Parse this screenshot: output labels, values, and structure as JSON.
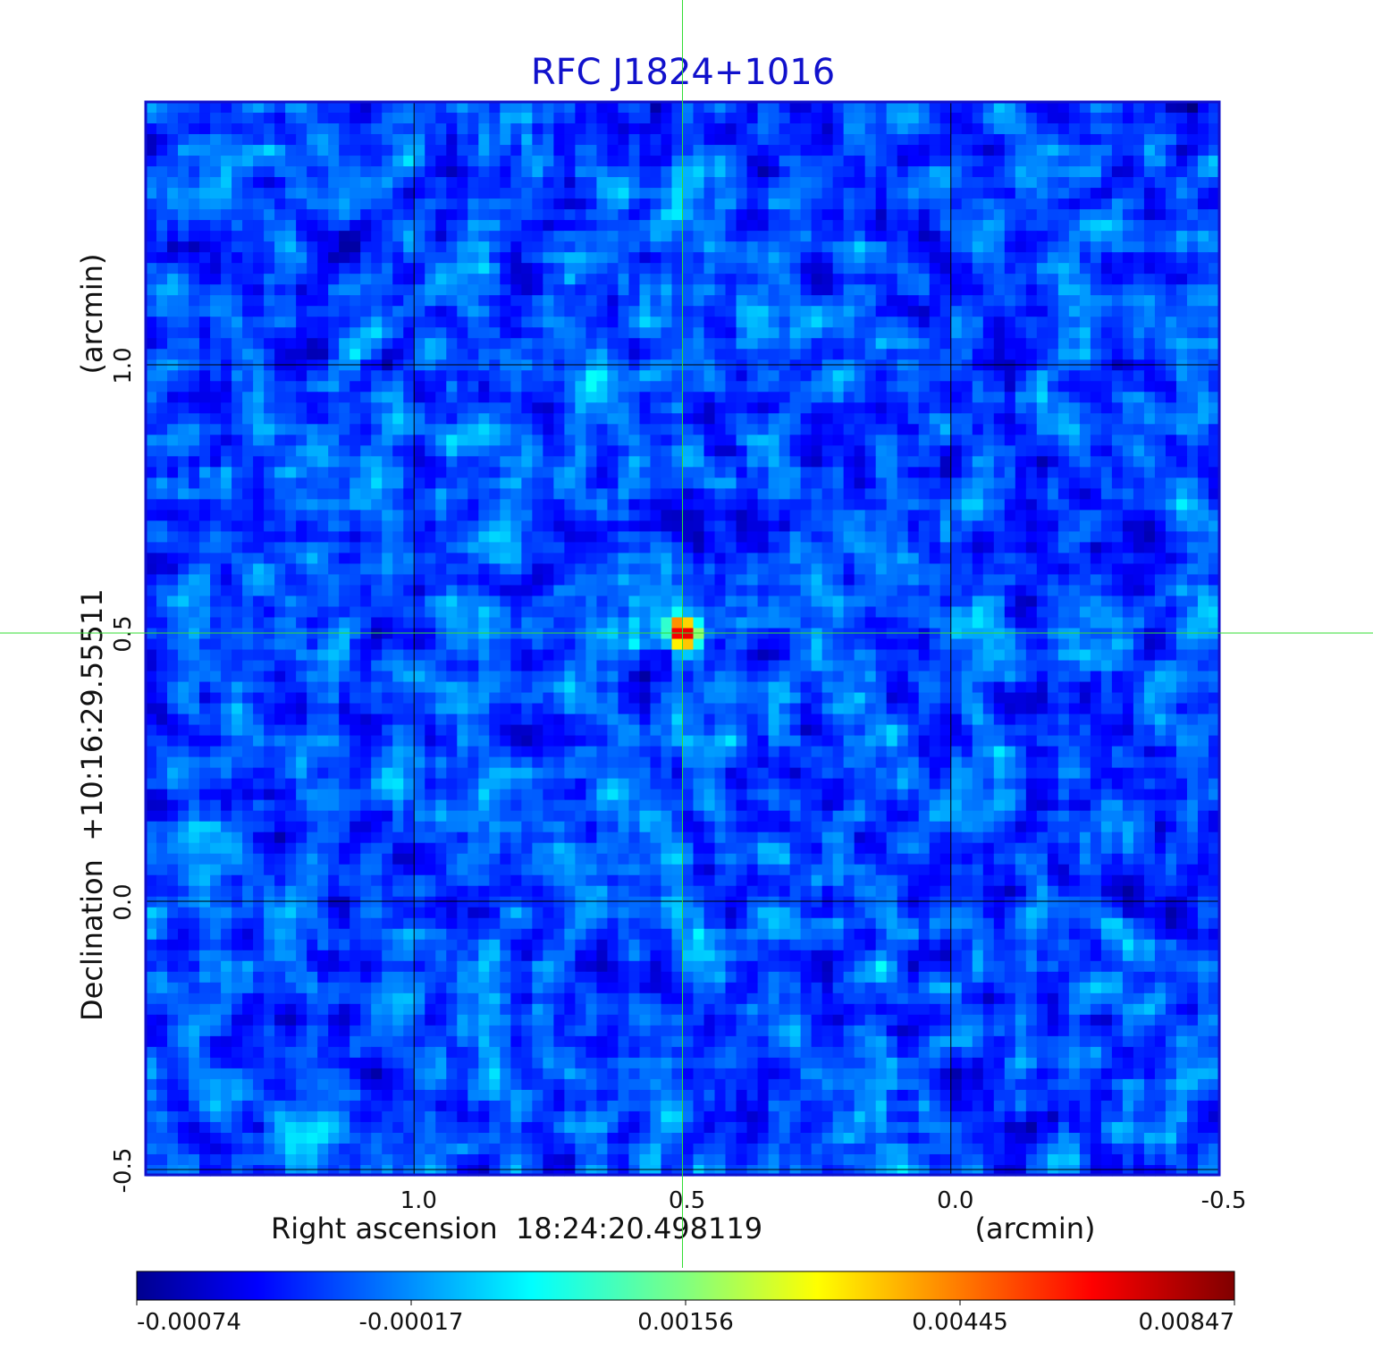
{
  "chart_data": {
    "type": "heatmap",
    "title": "RFC J1824+1016",
    "xlabel": "Right ascension  18:24:20.498119",
    "xunit": "(arcmin)",
    "ylabel": "Declination  +10:16:29.55511",
    "yunit": "(arcmin)",
    "x_ticks": [
      "1.0",
      "0.5",
      "0.0",
      "-0.5"
    ],
    "y_ticks": [
      "1.0",
      "0.5",
      "0.0",
      "-0.5"
    ],
    "xlim": [
      1.5,
      -0.5
    ],
    "ylim": [
      -0.51,
      1.49
    ],
    "grid": true,
    "crosshair": {
      "x": 0.5,
      "y": 0.5,
      "color": "#33dd33"
    },
    "source": {
      "x": 0.5,
      "y": 0.5,
      "peak": 0.00847
    },
    "colorscale": "jet",
    "colorbar": {
      "min": -0.00074,
      "max": 0.00847,
      "tick_labels": [
        "-0.00074",
        "-0.00017",
        "0.00156",
        "0.00445",
        "0.00847"
      ]
    },
    "colors": {
      "title": "#1111cc",
      "frame": "#1111cc",
      "grid": "#000000"
    }
  }
}
